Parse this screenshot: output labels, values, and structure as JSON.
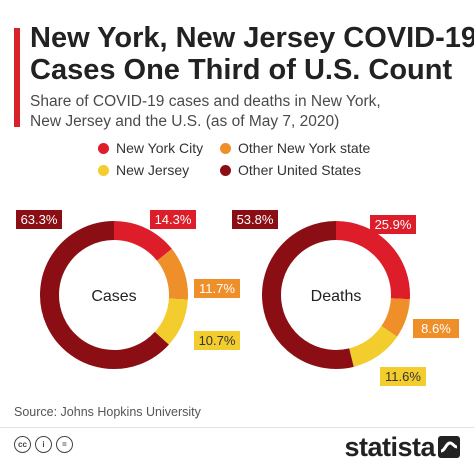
{
  "title_lines": [
    "New York, New Jersey COVID-19",
    "Cases One Third of U.S. Count"
  ],
  "subtitle_lines": [
    "Share of COVID-19 cases and deaths in New York,",
    "New Jersey and the U.S. (as of May 7, 2020)"
  ],
  "source": "Source: Johns Hopkins University",
  "brand": "statista",
  "license_icons": [
    "cc-icon",
    "attribution-icon",
    "noderivs-icon"
  ],
  "colors": {
    "accent": "#d7222a",
    "New York City": "#dd1e2a",
    "Other New York state": "#ee8f2a",
    "New Jersey": "#f3cd2e",
    "Other United States": "#8b0e15"
  },
  "chart_data": {
    "type": "pie",
    "legend": [
      "New York City",
      "Other New York state",
      "New Jersey",
      "Other United States"
    ],
    "charts": [
      {
        "label": "Cases",
        "slices": [
          {
            "name": "New York City",
            "value": 14.3,
            "label": "14.3%"
          },
          {
            "name": "Other New York state",
            "value": 11.7,
            "label": "11.7%"
          },
          {
            "name": "New Jersey",
            "value": 10.7,
            "label": "10.7%"
          },
          {
            "name": "Other United States",
            "value": 63.3,
            "label": "63.3%"
          }
        ]
      },
      {
        "label": "Deaths",
        "slices": [
          {
            "name": "New York City",
            "value": 25.9,
            "label": "25.9%"
          },
          {
            "name": "Other New York state",
            "value": 8.6,
            "label": "8.6%"
          },
          {
            "name": "New Jersey",
            "value": 11.6,
            "label": "11.6%"
          },
          {
            "name": "Other United States",
            "value": 53.8,
            "label": "53.8%"
          }
        ]
      }
    ]
  }
}
